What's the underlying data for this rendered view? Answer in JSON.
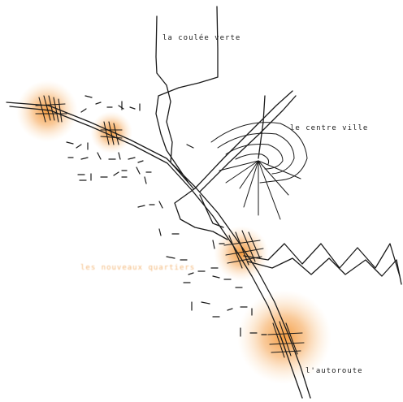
{
  "labels": {
    "coulee_verte": "la coulée verte",
    "centre_ville": "le centre ville",
    "autoroute": "l'autoroute",
    "faint_orange": "les nouveaux quartiers"
  },
  "colors": {
    "line": "#1a1a1a",
    "glow": "#f28a1e",
    "background": "#ffffff"
  }
}
